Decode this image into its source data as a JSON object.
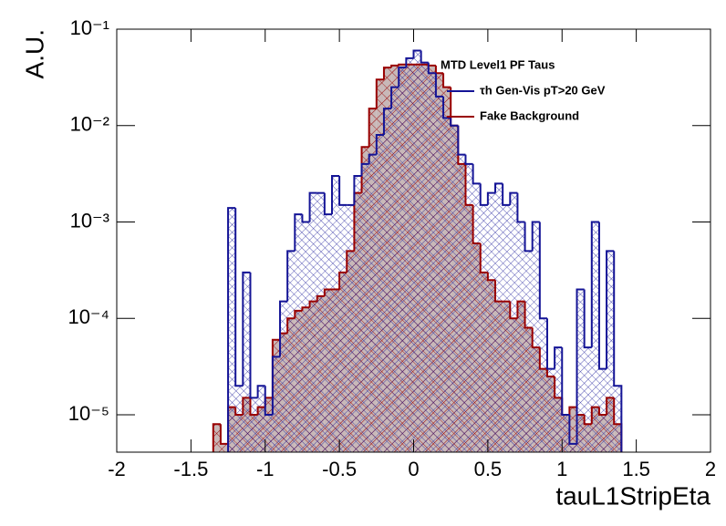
{
  "chart_data": {
    "type": "histogram",
    "x_label": "tauL1StripEta",
    "y_label": "A.U.",
    "legend_title": "MTD Level1 PF Taus",
    "log_y": true,
    "bins": [
      -2,
      -1.95,
      -1.9,
      -1.85,
      -1.8,
      -1.75,
      -1.7,
      -1.65,
      -1.6,
      -1.55,
      -1.5,
      -1.45,
      -1.4,
      -1.35,
      -1.3,
      -1.25,
      -1.2,
      -1.15,
      -1.1,
      -1.05,
      -1,
      -0.95,
      -0.9,
      -0.85,
      -0.8,
      -0.75,
      -0.7,
      -0.65,
      -0.6,
      -0.55,
      -0.5,
      -0.45,
      -0.4,
      -0.35,
      -0.3,
      -0.25,
      -0.2,
      -0.15,
      -0.1,
      -0.05,
      0,
      0.05,
      0.1,
      0.15,
      0.2,
      0.25,
      0.3,
      0.35,
      0.4,
      0.45,
      0.5,
      0.55,
      0.6,
      0.65,
      0.7,
      0.75,
      0.8,
      0.85,
      0.9,
      0.95,
      1,
      1.05,
      1.1,
      1.15,
      1.2,
      1.25,
      1.3,
      1.35,
      1.4,
      1.45,
      1.5,
      1.55,
      1.6,
      1.65,
      1.7,
      1.75,
      1.8,
      1.85,
      1.9,
      1.95,
      2
    ],
    "series": [
      {
        "name": "Fake Background",
        "color": "#990000",
        "hatch": "single",
        "values": [
          null,
          null,
          null,
          null,
          null,
          null,
          null,
          null,
          null,
          null,
          null,
          null,
          null,
          8e-06,
          5e-06,
          1.2e-05,
          1e-05,
          1.5e-05,
          1e-05,
          1.2e-05,
          1.5e-05,
          6e-05,
          7e-05,
          0.0001,
          0.00012,
          0.00013,
          0.00015,
          0.00017,
          0.0002,
          0.0002,
          0.0003,
          0.0005,
          0.002,
          0.006,
          0.015,
          0.03,
          0.04,
          0.042,
          0.043,
          0.043,
          0.043,
          0.043,
          0.042,
          0.035,
          0.025,
          0.01,
          0.004,
          0.0015,
          0.0006,
          0.0003,
          0.00025,
          0.00015,
          0.00015,
          0.0001,
          0.00015,
          8e-05,
          5e-05,
          3e-05,
          2.5e-05,
          1.5e-05,
          1e-05,
          1.2e-05,
          1e-05,
          8e-06,
          1.2e-05,
          1e-05,
          1.5e-05,
          8e-06,
          null,
          null,
          null,
          null,
          null,
          null,
          null,
          null,
          null,
          null,
          null,
          null
        ]
      },
      {
        "name": "τh Gen-Vis pT>20 GeV",
        "color": "#141496",
        "hatch": "cross",
        "values": [
          null,
          null,
          null,
          null,
          null,
          null,
          null,
          null,
          null,
          null,
          null,
          null,
          null,
          null,
          null,
          0.0014,
          2e-05,
          0.0003,
          1.5e-05,
          2e-05,
          1e-05,
          4e-05,
          0.00015,
          0.0005,
          0.0012,
          0.001,
          0.002,
          0.002,
          0.0012,
          0.003,
          0.0015,
          0.0015,
          0.003,
          0.004,
          0.005,
          0.008,
          0.015,
          0.025,
          0.04,
          0.05,
          0.06,
          0.045,
          0.035,
          0.02,
          0.012,
          0.01,
          0.005,
          0.004,
          0.0025,
          0.0015,
          0.002,
          0.0025,
          0.0015,
          0.002,
          0.001,
          0.0005,
          0.001,
          0.0001,
          3e-05,
          5e-05,
          1e-05,
          5e-06,
          0.0002,
          5e-05,
          0.001,
          3e-05,
          0.0005,
          2e-05,
          null,
          null,
          null,
          null,
          null,
          null,
          null,
          null,
          null,
          null,
          null,
          null
        ]
      }
    ],
    "xlim": [
      -2,
      2
    ],
    "xticks": [
      -2,
      -1.5,
      -1,
      -0.5,
      0,
      0.5,
      1,
      1.5,
      2
    ],
    "ylim": [
      4.1e-06,
      0.1
    ],
    "yticks": [
      {
        "value": 1e-05,
        "label": "10⁻⁵"
      },
      {
        "value": 0.0001,
        "label": "10⁻⁴"
      },
      {
        "value": 0.001,
        "label": "10⁻³"
      },
      {
        "value": 0.01,
        "label": "10⁻²"
      },
      {
        "value": 0.1,
        "label": "10⁻¹"
      }
    ]
  }
}
